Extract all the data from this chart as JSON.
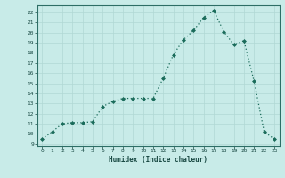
{
  "xlabel": "Humidex (Indice chaleur)",
  "x_values": [
    0,
    1,
    2,
    3,
    4,
    5,
    6,
    7,
    8,
    9,
    10,
    11,
    12,
    13,
    14,
    15,
    16,
    17,
    18,
    19,
    20,
    21,
    22,
    23
  ],
  "y_values": [
    9.5,
    10.2,
    11.0,
    11.1,
    11.1,
    11.2,
    12.7,
    13.2,
    13.5,
    13.5,
    13.5,
    13.5,
    15.5,
    17.8,
    19.3,
    20.2,
    21.5,
    22.2,
    20.1,
    18.8,
    19.2,
    15.2,
    10.2,
    9.5
  ],
  "xlim": [
    -0.5,
    23.5
  ],
  "ylim": [
    8.8,
    22.7
  ],
  "yticks": [
    9,
    10,
    11,
    12,
    13,
    14,
    15,
    16,
    17,
    18,
    19,
    20,
    21,
    22
  ],
  "xticks": [
    0,
    1,
    2,
    3,
    4,
    5,
    6,
    7,
    8,
    9,
    10,
    11,
    12,
    13,
    14,
    15,
    16,
    17,
    18,
    19,
    20,
    21,
    22,
    23
  ],
  "line_color": "#1a6b5a",
  "marker_color": "#1a6b5a",
  "bg_color": "#c8ebe8",
  "grid_color": "#b0d8d4",
  "axis_color": "#2d6e66",
  "text_color": "#1a4a44",
  "font_name": "monospace"
}
